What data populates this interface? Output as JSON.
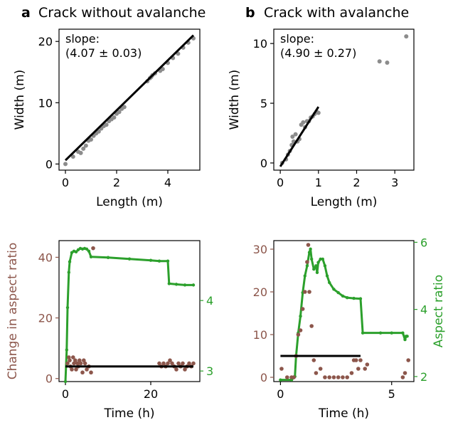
{
  "panels": {
    "a": {
      "letter": "a",
      "title": "Crack without avalanche"
    },
    "b": {
      "letter": "b",
      "title": "Crack with avalanche"
    }
  },
  "colors": {
    "points": "#8c8c8c",
    "fit": "#000000",
    "change": "#8c564b",
    "aspect": "#2ca02c"
  },
  "chart_data": [
    {
      "id": "a-top",
      "type": "scatter",
      "xlabel": "Length (m)",
      "ylabel": "Width (m)",
      "xlim": [
        -0.25,
        5.25
      ],
      "ylim": [
        -1.0,
        22.0
      ],
      "xticks": [
        0,
        2,
        4
      ],
      "yticks": [
        0,
        10,
        20
      ],
      "annotation": [
        "slope:",
        "(4.07 ± 0.03)"
      ],
      "points": [
        [
          0,
          0
        ],
        [
          0.3,
          1.2
        ],
        [
          0.5,
          2.0
        ],
        [
          0.6,
          1.8
        ],
        [
          0.7,
          2.5
        ],
        [
          0.8,
          3.0
        ],
        [
          0.9,
          3.8
        ],
        [
          1.0,
          4.0
        ],
        [
          1.1,
          4.6
        ],
        [
          1.2,
          5.0
        ],
        [
          1.3,
          5.3
        ],
        [
          1.4,
          5.8
        ],
        [
          1.5,
          6.2
        ],
        [
          1.6,
          6.4
        ],
        [
          1.7,
          7.0
        ],
        [
          1.8,
          7.3
        ],
        [
          1.9,
          7.6
        ],
        [
          2.0,
          8.2
        ],
        [
          2.1,
          8.5
        ],
        [
          2.2,
          9.0
        ],
        [
          2.3,
          9.3
        ],
        [
          3.2,
          13.5
        ],
        [
          3.3,
          14.0
        ],
        [
          3.35,
          14.2
        ],
        [
          3.4,
          14.5
        ],
        [
          3.5,
          14.8
        ],
        [
          3.7,
          15.2
        ],
        [
          3.8,
          15.5
        ],
        [
          4.0,
          16.5
        ],
        [
          4.2,
          17.3
        ],
        [
          4.4,
          18.0
        ],
        [
          4.6,
          19.0
        ],
        [
          4.8,
          19.8
        ],
        [
          5.0,
          20.5
        ]
      ],
      "fit": {
        "x": [
          0,
          5.0
        ],
        "y": [
          0.6,
          21.0
        ]
      }
    },
    {
      "id": "b-top",
      "type": "scatter",
      "xlabel": "Length (m)",
      "ylabel": "Width (m)",
      "xlim": [
        -0.17,
        3.5
      ],
      "ylim": [
        -0.6,
        11.2
      ],
      "xticks": [
        0,
        1,
        2,
        3
      ],
      "yticks": [
        0,
        5,
        10
      ],
      "annotation": [
        "slope:",
        "(4.90 ± 0.27)"
      ],
      "points": [
        [
          0.05,
          0.0
        ],
        [
          0.15,
          0.3
        ],
        [
          0.2,
          0.7
        ],
        [
          0.25,
          1.0
        ],
        [
          0.3,
          1.5
        ],
        [
          0.32,
          2.2
        ],
        [
          0.35,
          1.8
        ],
        [
          0.4,
          2.4
        ],
        [
          0.45,
          1.8
        ],
        [
          0.5,
          2.0
        ],
        [
          0.55,
          3.2
        ],
        [
          0.6,
          3.4
        ],
        [
          0.65,
          3.0
        ],
        [
          0.7,
          3.5
        ],
        [
          0.75,
          3.5
        ],
        [
          0.8,
          3.8
        ],
        [
          0.85,
          3.9
        ],
        [
          0.9,
          4.1
        ],
        [
          0.95,
          4.3
        ],
        [
          1.0,
          4.2
        ],
        [
          2.6,
          8.5
        ],
        [
          2.8,
          8.4
        ],
        [
          3.3,
          10.6
        ]
      ],
      "fit": {
        "x": [
          0,
          1.0
        ],
        "y": [
          -0.3,
          4.7
        ]
      }
    },
    {
      "id": "a-bottom",
      "type": "line",
      "xlabel": "Time (h)",
      "ylabel": "Change in aspect ratio",
      "y2label": "",
      "xlim": [
        -1.5,
        31.5
      ],
      "ylim": [
        -1,
        45.5
      ],
      "y2lim": [
        2.85,
        4.85
      ],
      "xticks": [
        0,
        20
      ],
      "yticks": [
        0,
        20,
        40
      ],
      "y2ticks": [
        3,
        4
      ],
      "scatter_points": [
        [
          0.5,
          5
        ],
        [
          0.8,
          7
        ],
        [
          1.0,
          6
        ],
        [
          1.2,
          4
        ],
        [
          1.5,
          3
        ],
        [
          1.8,
          7
        ],
        [
          2.0,
          5
        ],
        [
          2.3,
          6
        ],
        [
          2.5,
          3
        ],
        [
          2.8,
          5
        ],
        [
          3.0,
          4
        ],
        [
          3.3,
          6
        ],
        [
          3.6,
          5
        ],
        [
          4.0,
          2
        ],
        [
          4.3,
          6
        ],
        [
          4.6,
          5
        ],
        [
          5.0,
          3
        ],
        [
          5.5,
          4
        ],
        [
          6.0,
          2
        ],
        [
          6.5,
          43
        ],
        [
          22.0,
          5
        ],
        [
          22.5,
          4
        ],
        [
          23,
          5
        ],
        [
          23.5,
          4
        ],
        [
          24,
          5
        ],
        [
          24.5,
          6
        ],
        [
          25,
          5
        ],
        [
          25.5,
          4
        ],
        [
          26,
          3
        ],
        [
          26.5,
          5
        ],
        [
          27,
          4
        ],
        [
          27.5,
          5
        ],
        [
          28,
          3
        ],
        [
          28.5,
          4
        ],
        [
          29,
          5
        ],
        [
          29.5,
          4
        ],
        [
          30,
          5
        ]
      ],
      "hline": {
        "x": [
          0,
          30
        ],
        "y": 4.0
      },
      "aspect_series": [
        [
          0,
          2.85
        ],
        [
          0.3,
          3.3
        ],
        [
          0.5,
          3.9
        ],
        [
          0.8,
          4.4
        ],
        [
          1.0,
          4.55
        ],
        [
          1.5,
          4.68
        ],
        [
          2,
          4.7
        ],
        [
          2.5,
          4.69
        ],
        [
          3,
          4.72
        ],
        [
          3.5,
          4.74
        ],
        [
          4,
          4.73
        ],
        [
          4.5,
          4.74
        ],
        [
          5,
          4.73
        ],
        [
          5.5,
          4.7
        ],
        [
          6,
          4.62
        ],
        [
          10,
          4.61
        ],
        [
          15,
          4.59
        ],
        [
          20,
          4.57
        ],
        [
          22,
          4.56
        ],
        [
          24,
          4.56
        ],
        [
          24.3,
          4.24
        ],
        [
          26,
          4.23
        ],
        [
          28,
          4.22
        ],
        [
          30,
          4.22
        ]
      ]
    },
    {
      "id": "b-bottom",
      "type": "line",
      "xlabel": "Time (h)",
      "ylabel": "",
      "y2label": "Aspect ratio",
      "xlim": [
        -0.3,
        6.0
      ],
      "ylim": [
        -1,
        32
      ],
      "y2lim": [
        1.85,
        6.05
      ],
      "xticks": [
        0,
        5
      ],
      "yticks": [
        0,
        10,
        20,
        30
      ],
      "y2ticks": [
        2,
        4,
        6
      ],
      "scatter_points": [
        [
          0.05,
          2
        ],
        [
          0.3,
          0
        ],
        [
          0.5,
          0
        ],
        [
          0.6,
          0
        ],
        [
          0.7,
          5
        ],
        [
          0.8,
          10
        ],
        [
          0.9,
          11
        ],
        [
          1.0,
          16
        ],
        [
          1.1,
          20
        ],
        [
          1.2,
          27
        ],
        [
          1.25,
          31
        ],
        [
          1.3,
          20
        ],
        [
          1.4,
          12
        ],
        [
          1.5,
          4
        ],
        [
          1.6,
          1
        ],
        [
          1.8,
          2
        ],
        [
          2.0,
          0
        ],
        [
          2.2,
          0
        ],
        [
          2.4,
          0
        ],
        [
          2.6,
          0
        ],
        [
          2.8,
          0
        ],
        [
          3.0,
          0
        ],
        [
          3.2,
          1
        ],
        [
          3.3,
          4
        ],
        [
          3.4,
          4
        ],
        [
          3.5,
          2
        ],
        [
          3.6,
          4
        ],
        [
          3.8,
          2
        ],
        [
          3.9,
          3
        ],
        [
          5.5,
          0
        ],
        [
          5.6,
          1
        ],
        [
          5.75,
          4
        ]
      ],
      "hline": {
        "x": [
          0,
          3.6
        ],
        "y": 5.0
      },
      "aspect_series": [
        [
          0,
          1.9
        ],
        [
          0.5,
          1.9
        ],
        [
          0.65,
          2.0
        ],
        [
          0.7,
          2.6
        ],
        [
          0.8,
          3.3
        ],
        [
          0.9,
          3.8
        ],
        [
          1.0,
          4.5
        ],
        [
          1.1,
          5.0
        ],
        [
          1.2,
          5.3
        ],
        [
          1.3,
          5.7
        ],
        [
          1.35,
          5.8
        ],
        [
          1.4,
          5.5
        ],
        [
          1.5,
          5.2
        ],
        [
          1.6,
          5.3
        ],
        [
          1.65,
          5.1
        ],
        [
          1.7,
          5.4
        ],
        [
          1.8,
          5.5
        ],
        [
          1.9,
          5.5
        ],
        [
          2.0,
          5.3
        ],
        [
          2.1,
          5.0
        ],
        [
          2.2,
          4.8
        ],
        [
          2.4,
          4.6
        ],
        [
          2.6,
          4.5
        ],
        [
          2.8,
          4.4
        ],
        [
          3.0,
          4.35
        ],
        [
          3.3,
          4.33
        ],
        [
          3.6,
          4.32
        ],
        [
          3.7,
          3.3
        ],
        [
          4.5,
          3.3
        ],
        [
          5.0,
          3.3
        ],
        [
          5.5,
          3.3
        ],
        [
          5.6,
          3.1
        ],
        [
          5.65,
          3.2
        ],
        [
          5.7,
          3.2
        ]
      ]
    }
  ]
}
